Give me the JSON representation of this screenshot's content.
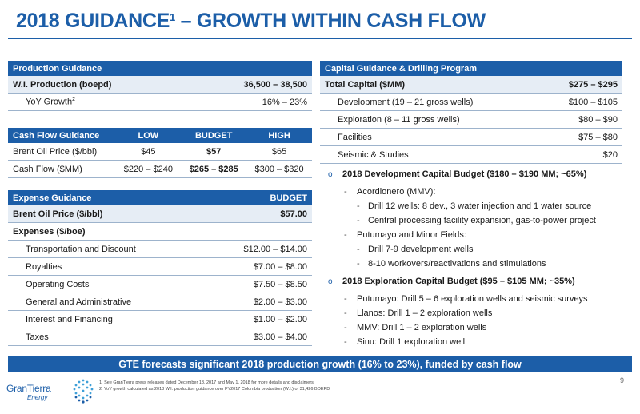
{
  "title": {
    "main": "2018 GUIDANCE",
    "sup": "1",
    "rest": " – GROWTH WITHIN CASH FLOW"
  },
  "production": {
    "header": "Production Guidance",
    "rows": [
      {
        "label": "W.I. Production (boepd)",
        "value": "36,500 – 38,500"
      },
      {
        "label": "YoY Growth",
        "sup": "2",
        "value": "16% – 23%"
      }
    ]
  },
  "cash_flow": {
    "headers": [
      "Cash Flow Guidance",
      "LOW",
      "BUDGET",
      "HIGH"
    ],
    "rows": [
      {
        "label": "Brent Oil Price ($/bbl)",
        "low": "$45",
        "budget": "$57",
        "high": "$65"
      },
      {
        "label": "Cash Flow ($MM)",
        "low": "$220 – $240",
        "budget": "$265 – $285",
        "high": "$300 – $320"
      }
    ]
  },
  "expense": {
    "headers": [
      "Expense Guidance",
      "BUDGET"
    ],
    "brent": {
      "label": "Brent Oil Price ($/bbl)",
      "value": "$57.00"
    },
    "section": "Expenses ($/boe)",
    "rows": [
      {
        "label": "Transportation and Discount",
        "value": "$12.00 – $14.00"
      },
      {
        "label": "Royalties",
        "value": "$7.00 – $8.00"
      },
      {
        "label": "Operating Costs",
        "value": "$7.50 – $8.50"
      },
      {
        "label": "General and Administrative",
        "value": "$2.00 – $3.00"
      },
      {
        "label": "Interest and Financing",
        "value": "$1.00 – $2.00"
      },
      {
        "label": "Taxes",
        "value": "$3.00 – $4.00"
      }
    ]
  },
  "capital": {
    "header": "Capital Guidance & Drilling Program",
    "total": {
      "label": "Total Capital ($MM)",
      "value": "$275 – $295"
    },
    "rows": [
      {
        "label": "Development (19 – 21 gross wells)",
        "value": "$100 – $105"
      },
      {
        "label": "Exploration (8 – 11 gross wells)",
        "value": "$80 – $90"
      },
      {
        "label": "Facilities",
        "value": "$75 – $80"
      },
      {
        "label": "Seismic & Studies",
        "value": "$20"
      }
    ]
  },
  "bullets": {
    "dev": {
      "title": "2018 Development Capital Budget ($180 – $190 MM; ~65%)",
      "acordionero": "Acordionero (MMV):",
      "acordionero_items": [
        "Drill 12 wells: 8 dev., 3 water injection and 1 water source",
        "Central processing facility expansion, gas-to-power project"
      ],
      "putumayo": "Putumayo and Minor Fields:",
      "putumayo_items": [
        "Drill 7-9 development wells",
        "8-10 workovers/reactivations and stimulations"
      ]
    },
    "exp": {
      "title": "2018 Exploration Capital Budget ($95 – $105 MM; ~35%)",
      "items": [
        "Putumayo: Drill 5 – 6 exploration wells and seismic surveys",
        "Llanos: Drill 1 – 2 exploration wells",
        "MMV: Drill 1 – 2 exploration wells",
        "Sinu: Drill 1 exploration well"
      ]
    }
  },
  "banner": "GTE forecasts significant 2018 production growth (16% to 23%), funded by cash flow",
  "footnotes": [
    "1.  See GranTierra press releases dated December 18, 2017 and May 1, 2018 for more details and disclaimers",
    "2.  YoY growth calculated as 2018 W.I. production guidance over FY2017 Colombia production (W.I.) of 31,426 BOEPD"
  ],
  "logo": {
    "name": "GranTierra",
    "sub": "Energy"
  },
  "page_number": "9",
  "colors": {
    "accent": "#1c5ea8",
    "row_shade": "#e6edf5"
  },
  "icons": {
    "bullet": "circle-bullet-icon",
    "logo": "grantierra-globe-icon"
  }
}
